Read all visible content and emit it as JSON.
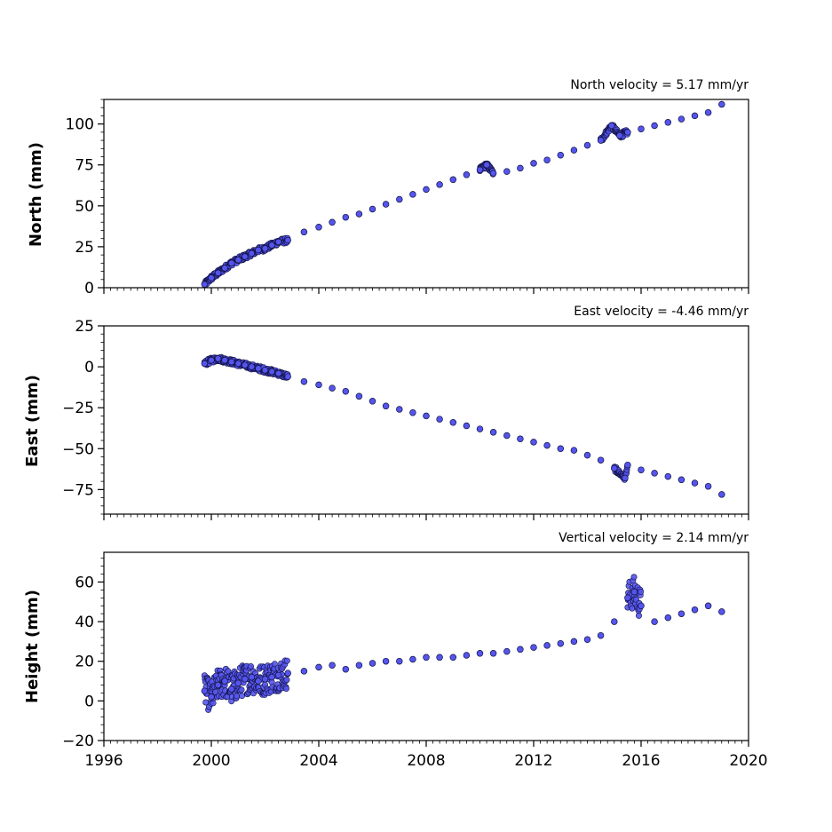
{
  "chart_data": [
    {
      "type": "scatter",
      "title": "North velocity = 5.17 mm/yr",
      "xlabel": "",
      "ylabel": "North (mm)",
      "xlim": [
        1996,
        2020
      ],
      "ylim": [
        0,
        115
      ],
      "yticks": [
        "0",
        "25",
        "50",
        "75",
        "100"
      ],
      "ytick_values": [
        0,
        25,
        50,
        75,
        100
      ],
      "xticks_labeled": false,
      "marker_color": "#5555ee",
      "marker_edge": "#111144",
      "series": [
        {
          "x": [
            1999.75,
            2000.0,
            2000.25,
            2000.5,
            2000.75,
            2001.0,
            2001.25,
            2001.5,
            2001.75,
            2002.0,
            2002.25,
            2002.5,
            2002.85,
            2003.45,
            2004.0,
            2004.5,
            2005.0,
            2005.5,
            2006.0,
            2006.5,
            2007.0,
            2007.5,
            2008.0,
            2008.5,
            2009.0,
            2009.5,
            2010.0,
            2010.25,
            2010.5,
            2011.0,
            2011.5,
            2012.0,
            2012.5,
            2013.0,
            2013.5,
            2014.0,
            2014.5,
            2014.9,
            2015.2,
            2015.5,
            2016.0,
            2016.5,
            2017.0,
            2017.5,
            2018.0,
            2018.5,
            2019.0
          ],
          "y": [
            2,
            6,
            9,
            12,
            15,
            17,
            19,
            21,
            23,
            24,
            26,
            28,
            29,
            34,
            37,
            40,
            43,
            45,
            48,
            51,
            54,
            57,
            60,
            63,
            66,
            69,
            72,
            75,
            70,
            71,
            73,
            76,
            78,
            81,
            84,
            87,
            90,
            99,
            93,
            95,
            97,
            99,
            101,
            103,
            105,
            107,
            112
          ]
        }
      ]
    },
    {
      "type": "scatter",
      "title": "East velocity = -4.46 mm/yr",
      "xlabel": "",
      "ylabel": "East (mm)",
      "xlim": [
        1996,
        2020
      ],
      "ylim": [
        -90,
        25
      ],
      "yticks": [
        "25",
        "0",
        "−25",
        "−50",
        "−75"
      ],
      "ytick_values": [
        25,
        0,
        -25,
        -50,
        -75
      ],
      "xticks_labeled": false,
      "marker_color": "#5555ee",
      "marker_edge": "#111144",
      "series": [
        {
          "x": [
            1999.75,
            2000.0,
            2000.25,
            2000.5,
            2000.75,
            2001.0,
            2001.25,
            2001.5,
            2001.75,
            2002.0,
            2002.25,
            2002.5,
            2002.85,
            2003.45,
            2004.0,
            2004.5,
            2005.0,
            2005.5,
            2006.0,
            2006.5,
            2007.0,
            2007.5,
            2008.0,
            2008.5,
            2009.0,
            2009.5,
            2010.0,
            2010.5,
            2011.0,
            2011.5,
            2012.0,
            2012.5,
            2013.0,
            2013.5,
            2014.0,
            2014.5,
            2015.0,
            2015.4,
            2015.5,
            2016.0,
            2016.5,
            2017.0,
            2017.5,
            2018.0,
            2018.5,
            2019.0
          ],
          "y": [
            2,
            4,
            5,
            4,
            3,
            2,
            1,
            0,
            -1,
            -2,
            -3,
            -4,
            -6,
            -9,
            -11,
            -13,
            -15,
            -18,
            -21,
            -24,
            -26,
            -28,
            -30,
            -32,
            -34,
            -36,
            -38,
            -40,
            -42,
            -44,
            -46,
            -48,
            -50,
            -51,
            -54,
            -57,
            -62,
            -68,
            -60,
            -63,
            -65,
            -67,
            -69,
            -71,
            -73,
            -78
          ]
        }
      ]
    },
    {
      "type": "scatter",
      "title": "Vertical velocity = 2.14 mm/yr",
      "xlabel": "",
      "ylabel": "Height (mm)",
      "xlim": [
        1996,
        2020
      ],
      "ylim": [
        -20,
        75
      ],
      "yticks": [
        "−20",
        "0",
        "20",
        "40",
        "60"
      ],
      "ytick_values": [
        -20,
        0,
        20,
        40,
        60
      ],
      "xticks": [
        "1996",
        "2000",
        "2004",
        "2008",
        "2012",
        "2016",
        "2020"
      ],
      "xtick_values": [
        1996,
        2000,
        2004,
        2008,
        2012,
        2016,
        2020
      ],
      "xticks_labeled": true,
      "marker_color": "#5555ee",
      "marker_edge": "#111144",
      "series": [
        {
          "x": [
            1999.75,
            2000.0,
            2000.25,
            2000.5,
            2000.75,
            2001.0,
            2001.25,
            2001.5,
            2001.75,
            2002.0,
            2002.25,
            2002.5,
            2002.85,
            2003.45,
            2004.0,
            2004.5,
            2005.0,
            2005.5,
            2006.0,
            2006.5,
            2007.0,
            2007.5,
            2008.0,
            2008.5,
            2009.0,
            2009.5,
            2010.0,
            2010.5,
            2011.0,
            2011.5,
            2012.0,
            2012.5,
            2013.0,
            2013.5,
            2014.0,
            2014.5,
            2015.0,
            2015.5,
            2015.75,
            2016.0,
            2016.5,
            2017.0,
            2017.5,
            2018.0,
            2018.5,
            2019.0
          ],
          "y": [
            5,
            2,
            8,
            10,
            6,
            9,
            11,
            12,
            10,
            11,
            12,
            13,
            14,
            15,
            17,
            18,
            16,
            18,
            19,
            20,
            20,
            21,
            22,
            22,
            22,
            23,
            24,
            24,
            25,
            26,
            27,
            28,
            29,
            30,
            31,
            33,
            40,
            52,
            55,
            48,
            40,
            42,
            44,
            46,
            48,
            45
          ]
        }
      ]
    }
  ]
}
